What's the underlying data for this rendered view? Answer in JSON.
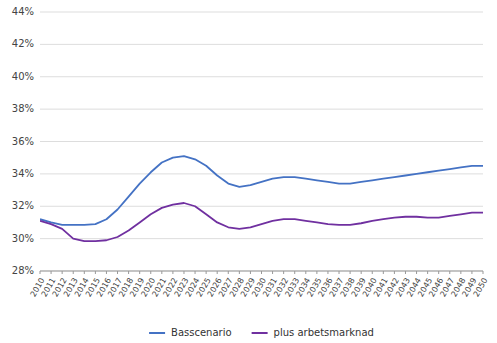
{
  "chart_data": {
    "type": "line",
    "x": [
      2010,
      2011,
      2012,
      2013,
      2014,
      2015,
      2016,
      2017,
      2018,
      2019,
      2020,
      2021,
      2022,
      2023,
      2024,
      2025,
      2026,
      2027,
      2028,
      2029,
      2030,
      2031,
      2032,
      2033,
      2034,
      2035,
      2036,
      2037,
      2038,
      2039,
      2040,
      2041,
      2042,
      2043,
      2044,
      2045,
      2046,
      2047,
      2048,
      2049,
      2050
    ],
    "series": [
      {
        "name": "Basscenario",
        "color": "#4472C4",
        "values": [
          31.2,
          31.0,
          30.85,
          30.85,
          30.85,
          30.9,
          31.2,
          31.8,
          32.6,
          33.4,
          34.1,
          34.7,
          35.0,
          35.1,
          34.9,
          34.5,
          33.9,
          33.4,
          33.2,
          33.3,
          33.5,
          33.7,
          33.8,
          33.8,
          33.7,
          33.6,
          33.5,
          33.4,
          33.4,
          33.5,
          33.6,
          33.7,
          33.8,
          33.9,
          34.0,
          34.1,
          34.2,
          34.3,
          34.4,
          34.5,
          34.5
        ]
      },
      {
        "name": "plus arbetsmarknad",
        "color": "#7030A0",
        "values": [
          31.1,
          30.9,
          30.6,
          30.0,
          29.85,
          29.85,
          29.9,
          30.1,
          30.5,
          31.0,
          31.5,
          31.9,
          32.1,
          32.2,
          32.0,
          31.5,
          31.0,
          30.7,
          30.6,
          30.7,
          30.9,
          31.1,
          31.2,
          31.2,
          31.1,
          31.0,
          30.9,
          30.85,
          30.85,
          30.95,
          31.1,
          31.2,
          31.3,
          31.35,
          31.35,
          31.3,
          31.3,
          31.4,
          31.5,
          31.6,
          31.6
        ]
      }
    ],
    "xlim": [
      2010,
      2050
    ],
    "xticks": [
      2010,
      2011,
      2012,
      2013,
      2014,
      2015,
      2016,
      2017,
      2018,
      2019,
      2020,
      2021,
      2022,
      2023,
      2024,
      2025,
      2026,
      2027,
      2028,
      2029,
      2030,
      2031,
      2032,
      2033,
      2034,
      2035,
      2036,
      2037,
      2038,
      2039,
      2040,
      2041,
      2042,
      2043,
      2044,
      2045,
      2046,
      2047,
      2048,
      2049,
      2050
    ],
    "ylim": [
      28,
      44
    ],
    "yticks": [
      {
        "value": 28,
        "label": "28%"
      },
      {
        "value": 30,
        "label": "30%"
      },
      {
        "value": 32,
        "label": "32%"
      },
      {
        "value": 34,
        "label": "34%"
      },
      {
        "value": 36,
        "label": "36%"
      },
      {
        "value": 38,
        "label": "38%"
      },
      {
        "value": 40,
        "label": "40%"
      },
      {
        "value": 42,
        "label": "42%"
      },
      {
        "value": 44,
        "label": "44%"
      }
    ],
    "grid": "y",
    "legend": "bottom"
  }
}
